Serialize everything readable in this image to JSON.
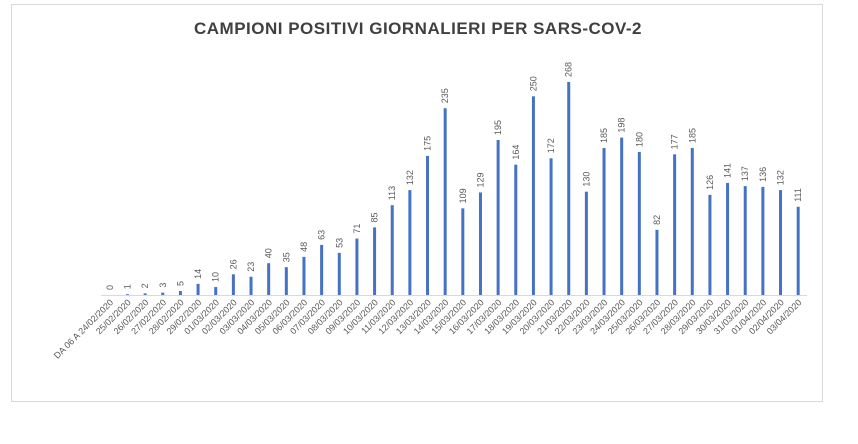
{
  "chart_data": {
    "type": "bar",
    "title": "CAMPIONI POSITIVI GIORNALIERI PER SARS-COV-2",
    "xlabel": "",
    "ylabel": "",
    "ylim": [
      0,
      268
    ],
    "grid": false,
    "legend": "none",
    "bar_color": "#4472c4",
    "categories": [
      "DA 06 A 24/02/2020",
      "25/02/2020",
      "26/02/2020",
      "27/02/2020",
      "28/02/2020",
      "29/02/2020",
      "01/03/2020",
      "02/03/2020",
      "03/03/2020",
      "04/03/2020",
      "05/03/2020",
      "06/03/2020",
      "07/03/2020",
      "08/03/2020",
      "09/03/2020",
      "10/03/2020",
      "11/03/2020",
      "12/03/2020",
      "13/03/2020",
      "14/03/2020",
      "15/03/2020",
      "16/03/2020",
      "17/03/2020",
      "18/03/2020",
      "19/03/2020",
      "20/03/2020",
      "21/03/2020",
      "22/03/2020",
      "23/03/2020",
      "24/03/2020",
      "25/03/2020",
      "26/03/2020",
      "27/03/2020",
      "28/03/2020",
      "29/03/2020",
      "30/03/2020",
      "31/03/2020",
      "01/04/2020",
      "02/04/2020",
      "03/04/2020"
    ],
    "values": [
      0,
      1,
      2,
      3,
      5,
      14,
      10,
      26,
      23,
      40,
      35,
      48,
      63,
      53,
      71,
      85,
      113,
      132,
      175,
      235,
      109,
      129,
      195,
      164,
      250,
      172,
      268,
      130,
      185,
      198,
      180,
      82,
      177,
      185,
      126,
      141,
      137,
      136,
      132,
      111
    ]
  }
}
